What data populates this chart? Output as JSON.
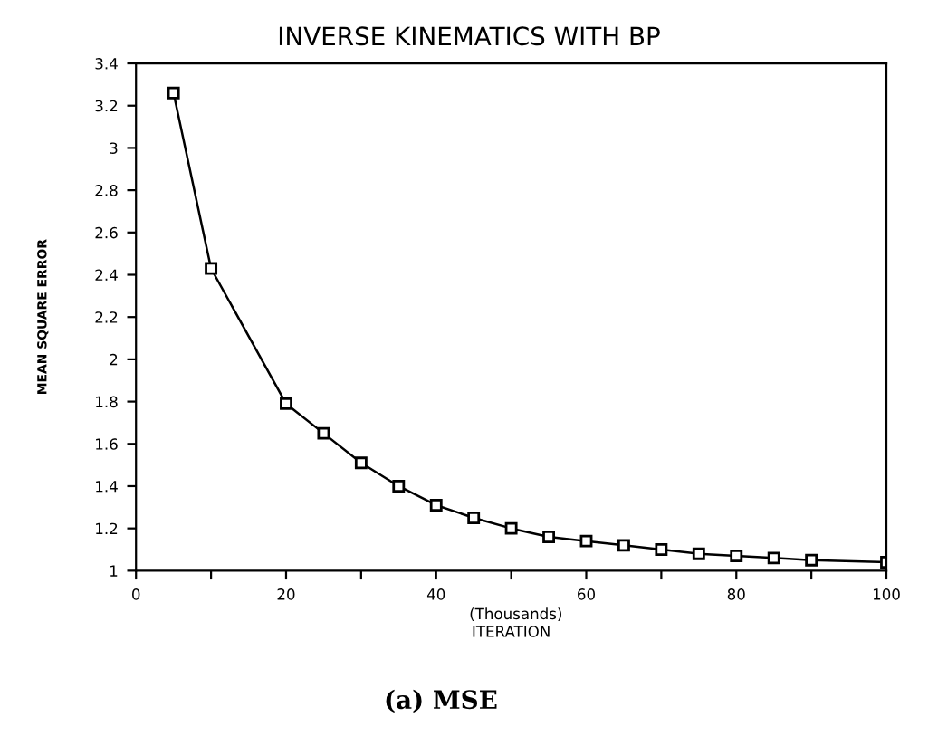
{
  "chart_data": {
    "type": "line",
    "title": "INVERSE KINEMATICS WITH BP",
    "xlabel": "ITERATION",
    "ylabel": "MEAN SQUARE ERROR",
    "annotations": [
      "(Thousands)",
      "(a) MSE"
    ],
    "x": [
      5,
      10,
      20,
      25,
      30,
      35,
      40,
      45,
      50,
      55,
      60,
      65,
      70,
      75,
      80,
      85,
      90,
      100
    ],
    "series": [
      {
        "color": "#000000",
        "values": [
          3.26,
          2.43,
          1.79,
          1.65,
          1.51,
          1.4,
          1.31,
          1.25,
          1.2,
          1.16,
          1.14,
          1.12,
          1.1,
          1.08,
          1.07,
          1.06,
          1.05,
          1.04
        ]
      }
    ],
    "xlim": [
      0,
      100
    ],
    "xticks": [
      0,
      {
        "value": 10,
        "label": null
      },
      20,
      {
        "value": 30,
        "label": null
      },
      40,
      {
        "value": 50,
        "label": null
      },
      60,
      {
        "value": 70,
        "label": null
      },
      80,
      {
        "value": 90,
        "label": null
      },
      100
    ],
    "ylim": [
      1,
      3.4
    ],
    "yticks": [
      1,
      1.2,
      1.4,
      1.6,
      1.8,
      2,
      2.2,
      2.4,
      2.6,
      2.8,
      3,
      3.2,
      3.4
    ],
    "marker": "square",
    "line_style": "solid",
    "grid": false,
    "legend": false
  }
}
